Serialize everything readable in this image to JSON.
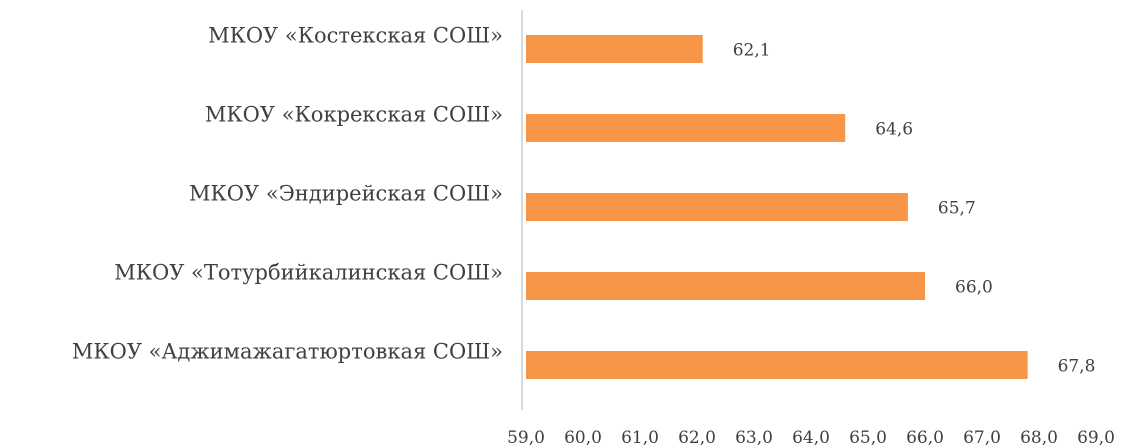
{
  "chart_data": {
    "type": "bar",
    "orientation": "horizontal",
    "categories": [
      "МКОУ «Костекская СОШ»",
      "МКОУ «Кокрекская СОШ»",
      "МКОУ «Эндирейская СОШ»",
      "МКОУ «Тотурбийкалинская СОШ»",
      "МКОУ «Аджимажагатюртовкая СОШ»"
    ],
    "values": [
      62.1,
      64.6,
      65.7,
      66.0,
      67.8
    ],
    "value_labels": [
      "62,1",
      "64,6",
      "65,7",
      "66,0",
      "67,8"
    ],
    "xlim": [
      59,
      69
    ],
    "x_ticks": [
      59,
      60,
      61,
      62,
      63,
      64,
      65,
      66,
      67,
      68,
      69
    ],
    "x_tick_labels": [
      "59,0",
      "60,0",
      "61,0",
      "62,0",
      "63,0",
      "64,0",
      "65,0",
      "66,0",
      "67,0",
      "68,0",
      "69,0"
    ],
    "bar_color": "#F79646",
    "axis_color": "#D9D9D9",
    "text_color": "#404040",
    "grid": false,
    "legend": "none"
  }
}
